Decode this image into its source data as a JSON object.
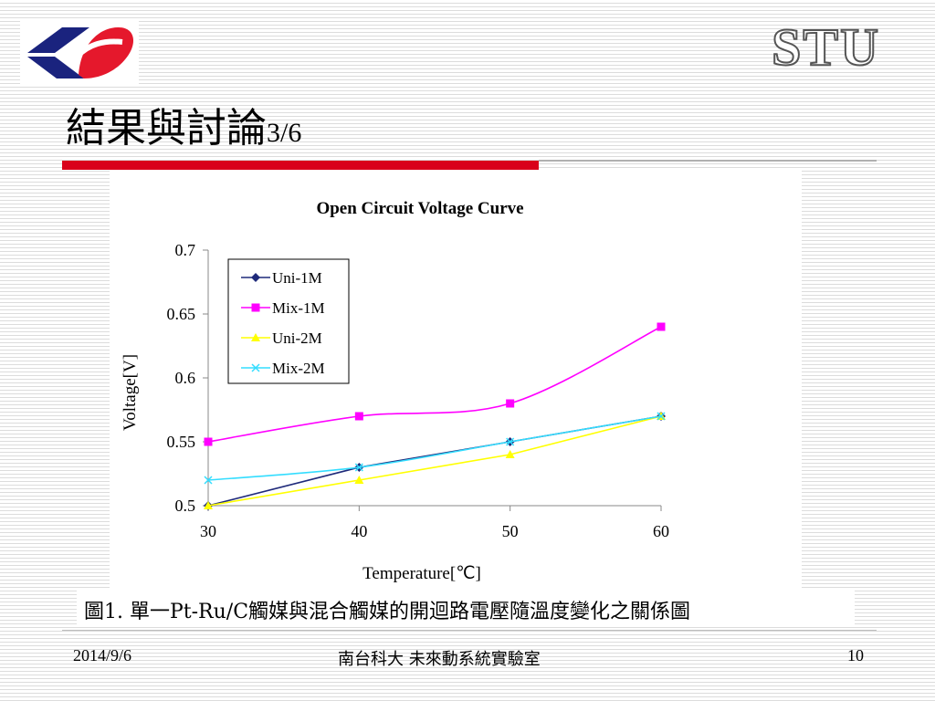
{
  "slide": {
    "brand": "STU",
    "title_main": "結果與討論",
    "title_page": "3/6",
    "caption": "圖1. 單一Pt-Ru/C觸媒與混合觸媒的開迴路電壓隨溫度變化之關係圖",
    "footer_date": "2014/9/6",
    "footer_org": "南台科大  未來動系統實驗室",
    "footer_page": "10"
  },
  "colors": {
    "accent_red": "#d9001b",
    "logo_blue": "#1a237e",
    "logo_red": "#e5182c"
  },
  "chart_data": {
    "type": "line",
    "title": "Open Circuit Voltage Curve",
    "xlabel": "Temperature[℃]",
    "ylabel": "Voltage[V]",
    "x": [
      30,
      40,
      50,
      60
    ],
    "x_ticks": [
      "30",
      "40",
      "50",
      "60"
    ],
    "y_ticks": [
      "0.5",
      "0.55",
      "0.6",
      "0.65",
      "0.7"
    ],
    "ylim": [
      0.5,
      0.7
    ],
    "xlim": [
      30,
      60
    ],
    "grid": false,
    "legend_position": "top-left",
    "series": [
      {
        "name": "Uni-1M",
        "values": [
          0.5,
          0.53,
          0.55,
          0.57
        ],
        "color": "#1f2a7a",
        "marker": "diamond",
        "smooth": false
      },
      {
        "name": "Mix-1M",
        "values": [
          0.55,
          0.57,
          0.58,
          0.64
        ],
        "color": "#ff00ff",
        "marker": "square",
        "smooth": true
      },
      {
        "name": "Uni-2M",
        "values": [
          0.5,
          0.52,
          0.54,
          0.57
        ],
        "color": "#ffff00",
        "marker": "triangle",
        "smooth": false
      },
      {
        "name": "Mix-2M",
        "values": [
          0.52,
          0.53,
          0.55,
          0.57
        ],
        "color": "#33ddff",
        "marker": "x",
        "smooth": true
      }
    ]
  }
}
